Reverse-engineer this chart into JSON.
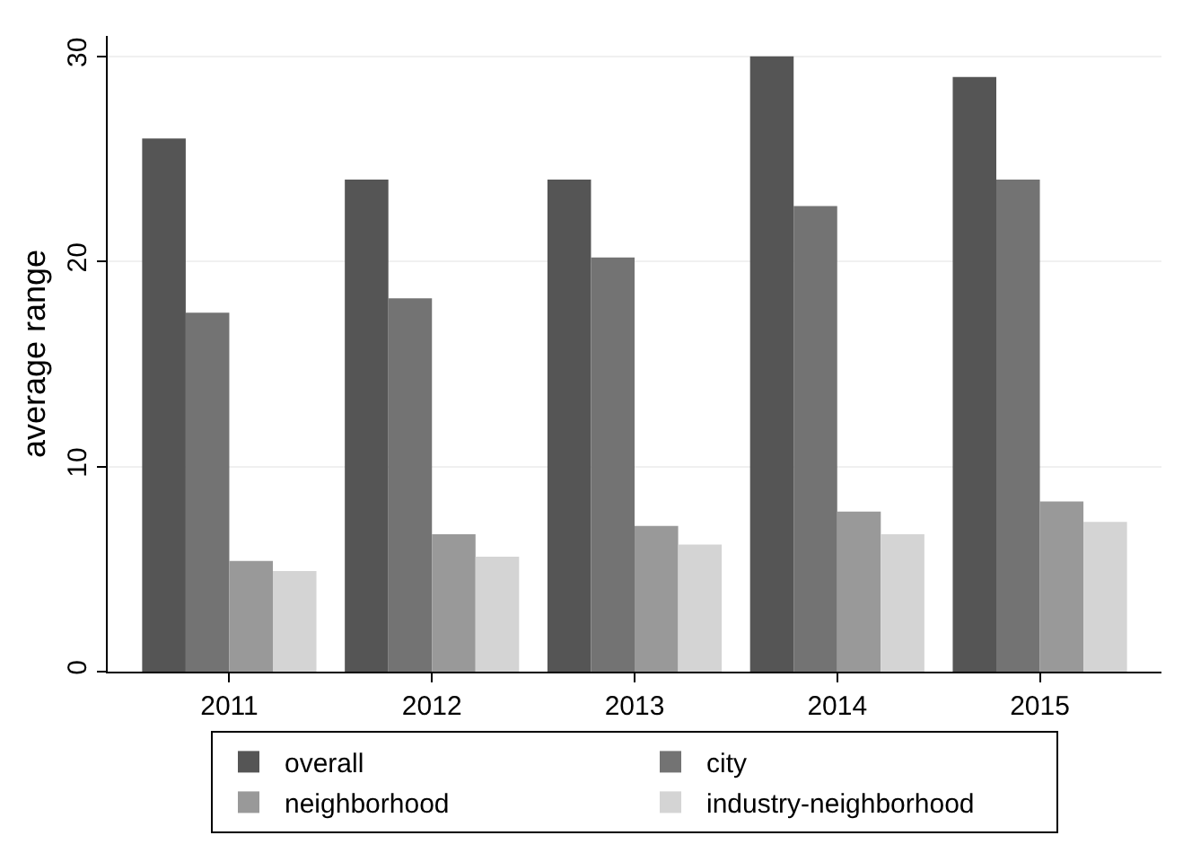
{
  "chart_data": {
    "type": "bar",
    "ylabel": "average range",
    "categories": [
      "2011",
      "2012",
      "2013",
      "2014",
      "2015"
    ],
    "series": [
      {
        "name": "overall",
        "color": "#555555",
        "values": [
          26.0,
          24.0,
          24.0,
          30.0,
          29.0
        ]
      },
      {
        "name": "city",
        "color": "#737373",
        "values": [
          17.5,
          18.2,
          20.2,
          22.7,
          24.0
        ]
      },
      {
        "name": "neighborhood",
        "color": "#999999",
        "values": [
          5.4,
          6.7,
          7.1,
          7.8,
          8.3
        ]
      },
      {
        "name": "industry-neighborhood",
        "color": "#d4d4d4",
        "values": [
          4.9,
          5.6,
          6.2,
          6.7,
          7.3
        ]
      }
    ],
    "ylim": [
      0,
      31
    ],
    "yticks": [
      0,
      10,
      20,
      30
    ],
    "grid": "y",
    "legend": "bottom"
  }
}
